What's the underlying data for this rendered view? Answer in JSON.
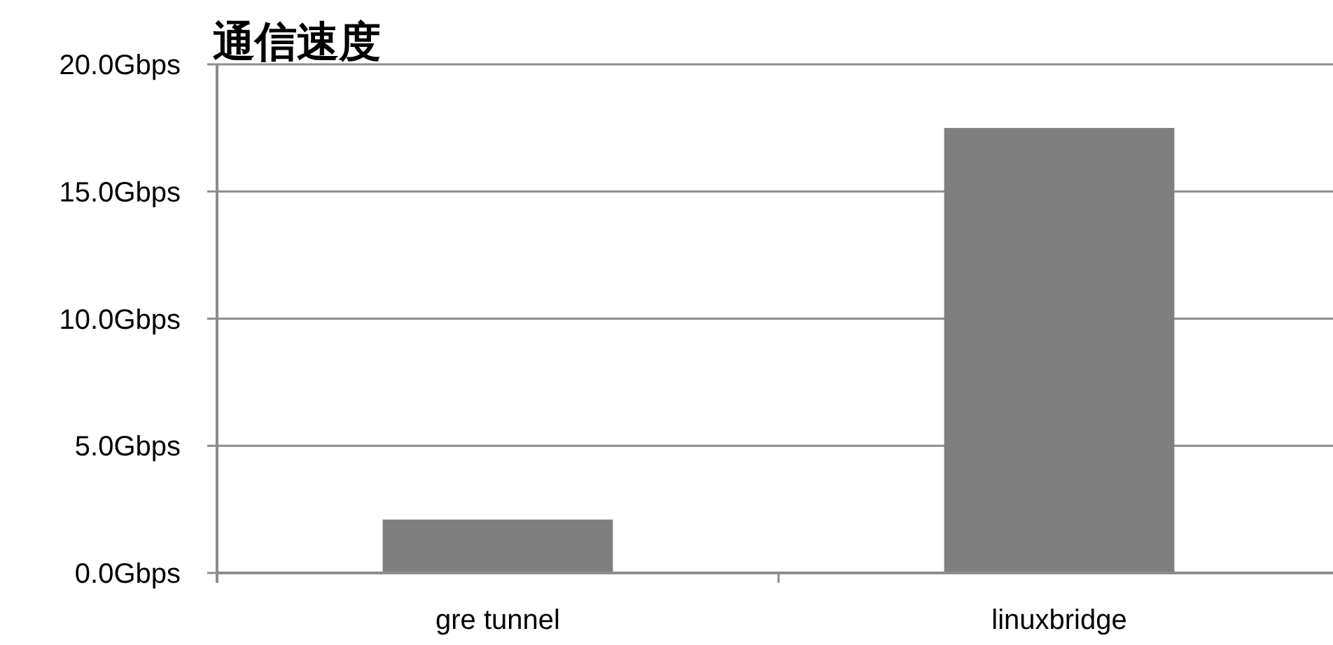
{
  "chart_data": {
    "type": "bar",
    "title": "通信速度",
    "categories": [
      "gre tunnel",
      "linuxbridge"
    ],
    "values": [
      2.1,
      17.5
    ],
    "color": "#7f7f7f",
    "ylim": [
      0,
      20
    ],
    "yticks": [
      {
        "value": 0,
        "label": "0.0Gbps"
      },
      {
        "value": 5,
        "label": "5.0Gbps"
      },
      {
        "value": 10,
        "label": "10.0Gbps"
      },
      {
        "value": 15,
        "label": "15.0Gbps"
      },
      {
        "value": 20,
        "label": "20.0Gbps"
      }
    ],
    "grid": "y"
  }
}
